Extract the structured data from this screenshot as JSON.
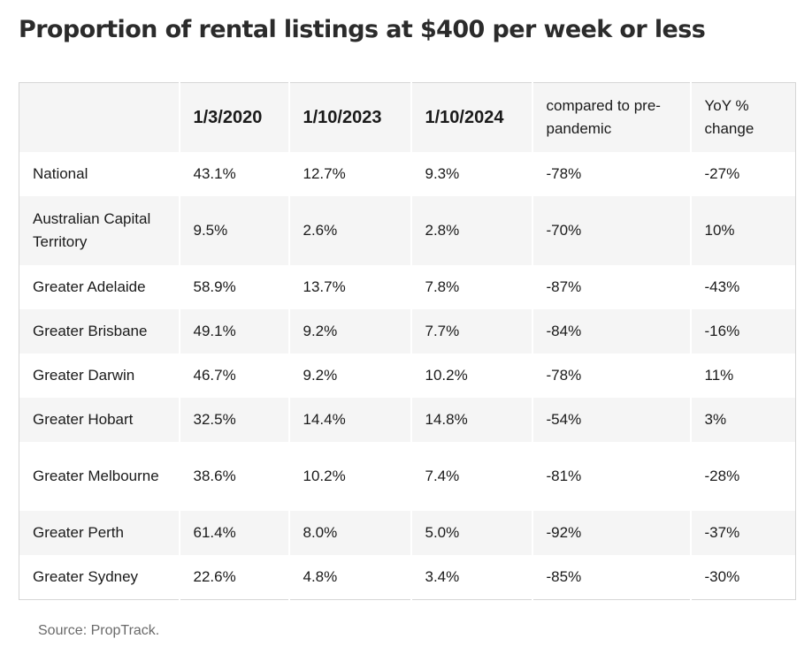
{
  "chart_data": {
    "type": "table",
    "title": "Proportion of rental listings at $400 per week or less",
    "columns": [
      "",
      "1/3/2020",
      "1/10/2023",
      "1/10/2024",
      "compared to pre-pandemic",
      "YoY % change"
    ],
    "rows": [
      {
        "region": "National",
        "v2020": "43.1%",
        "v2023": "12.7%",
        "v2024": "9.3%",
        "vs_pre": "-78%",
        "yoy": "-27%"
      },
      {
        "region": "Australian Capital Territory",
        "v2020": "9.5%",
        "v2023": "2.6%",
        "v2024": "2.8%",
        "vs_pre": "-70%",
        "yoy": "10%"
      },
      {
        "region": "Greater Adelaide",
        "v2020": "58.9%",
        "v2023": "13.7%",
        "v2024": "7.8%",
        "vs_pre": "-87%",
        "yoy": "-43%"
      },
      {
        "region": "Greater Brisbane",
        "v2020": "49.1%",
        "v2023": "9.2%",
        "v2024": "7.7%",
        "vs_pre": "-84%",
        "yoy": "-16%"
      },
      {
        "region": "Greater Darwin",
        "v2020": "46.7%",
        "v2023": "9.2%",
        "v2024": "10.2%",
        "vs_pre": "-78%",
        "yoy": "11%"
      },
      {
        "region": "Greater Hobart",
        "v2020": "32.5%",
        "v2023": "14.4%",
        "v2024": "14.8%",
        "vs_pre": "-54%",
        "yoy": "3%"
      },
      {
        "region": "Greater Melbourne",
        "v2020": "38.6%",
        "v2023": "10.2%",
        "v2024": "7.4%",
        "vs_pre": "-81%",
        "yoy": "-28%"
      },
      {
        "region": "Greater Perth",
        "v2020": "61.4%",
        "v2023": "8.0%",
        "v2024": "5.0%",
        "vs_pre": "-92%",
        "yoy": "-37%"
      },
      {
        "region": "Greater Sydney",
        "v2020": "22.6%",
        "v2023": "4.8%",
        "v2024": "3.4%",
        "vs_pre": "-85%",
        "yoy": "-30%"
      }
    ],
    "source": "Source: PropTrack."
  }
}
